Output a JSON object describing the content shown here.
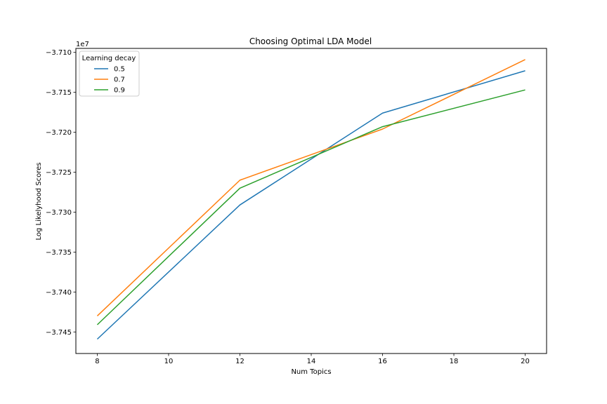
{
  "chart_data": {
    "type": "line",
    "title": "Choosing Optimal LDA Model",
    "xlabel": "Num Topics",
    "ylabel": "Log Likelyhood Scores",
    "y_offset_label": "1e7",
    "x": [
      8,
      12,
      16,
      20
    ],
    "xlim": [
      7.4,
      20.6
    ],
    "ylim": [
      -3.7477,
      -3.7095
    ],
    "x_ticks": [
      8,
      10,
      12,
      14,
      16,
      18,
      20
    ],
    "x_tick_labels": [
      "8",
      "10",
      "12",
      "14",
      "16",
      "18",
      "20"
    ],
    "y_ticks": [
      -3.745,
      -3.74,
      -3.735,
      -3.73,
      -3.725,
      -3.72,
      -3.715,
      -3.71
    ],
    "y_tick_labels": [
      "−3.745",
      "−3.740",
      "−3.735",
      "−3.730",
      "−3.725",
      "−3.720",
      "−3.715",
      "−3.710"
    ],
    "legend_title": "Learning decay",
    "legend_position": "upper-left",
    "grid": false,
    "series": [
      {
        "name": "0.5",
        "color": "#1f77b4",
        "values": [
          -3.7459,
          -3.7291,
          -3.7176,
          -3.7123
        ]
      },
      {
        "name": "0.7",
        "color": "#ff7f0e",
        "values": [
          -3.743,
          -3.726,
          -3.7196,
          -3.7109
        ]
      },
      {
        "name": "0.9",
        "color": "#2ca02c",
        "values": [
          -3.7441,
          -3.727,
          -3.7193,
          -3.7147
        ]
      }
    ]
  }
}
